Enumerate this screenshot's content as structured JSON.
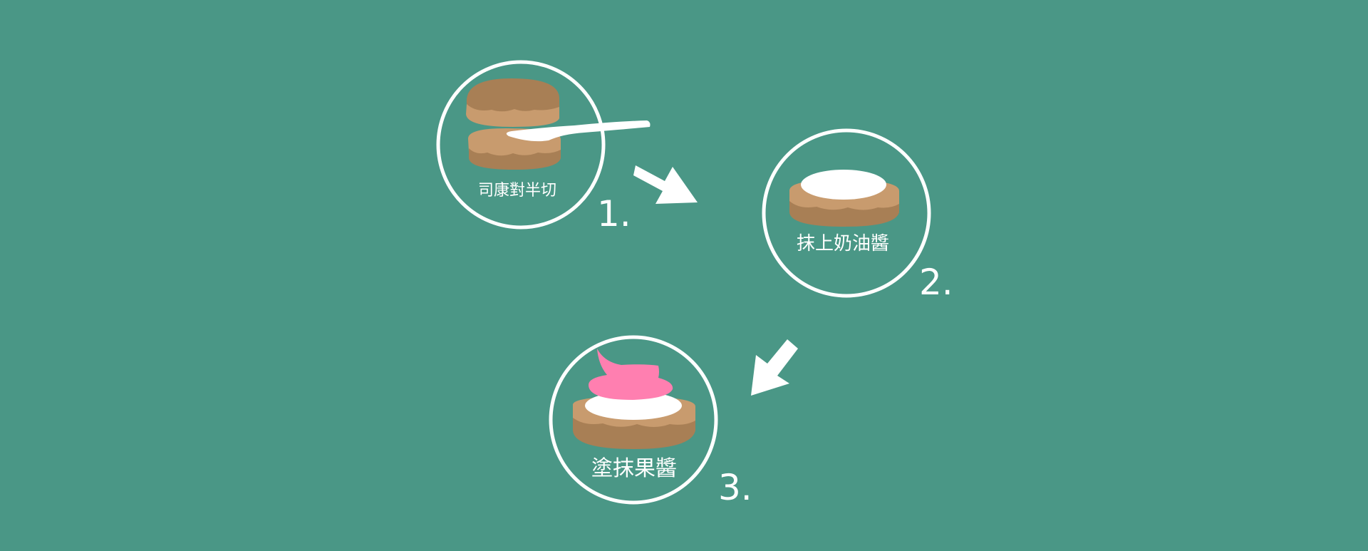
{
  "colors": {
    "background": "#4a9786",
    "scone_light": "#c89b6e",
    "scone_dark": "#a87f55",
    "cream": "#ffffff",
    "jam": "#ff7fb0",
    "outline": "#ffffff"
  },
  "steps": [
    {
      "label": "司康對半切",
      "number": "1.",
      "icon": "halved-scone-with-knife-icon"
    },
    {
      "label": "抹上奶油醬",
      "number": "2.",
      "icon": "scone-with-cream-icon"
    },
    {
      "label": "塗抹果醬",
      "number": "3.",
      "icon": "scone-with-cream-and-jam-icon"
    }
  ],
  "arrows": [
    {
      "icon": "arrow-down-right-icon"
    },
    {
      "icon": "arrow-down-left-icon"
    }
  ]
}
